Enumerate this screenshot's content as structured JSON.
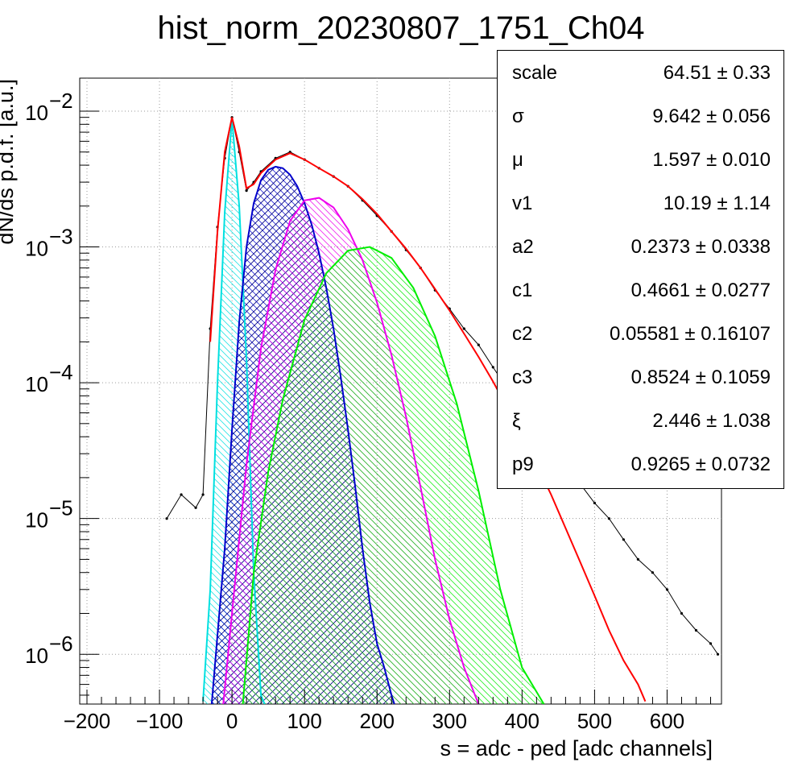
{
  "chart_data": {
    "type": "line",
    "title": "hist_norm_20230807_1751_Ch04",
    "xlabel": "s = adc - ped [adc channels]",
    "ylabel": "dN/ds p.d.f. [a.u.]",
    "xlim": [
      -210,
      675
    ],
    "ylim": [
      4.3e-07,
      0.0175
    ],
    "yscale": "log",
    "grid": true,
    "x_ticks": [
      {
        "v": -200,
        "label": "−200"
      },
      {
        "v": -100,
        "label": "−100"
      },
      {
        "v": 0,
        "label": "0"
      },
      {
        "v": 100,
        "label": "100"
      },
      {
        "v": 200,
        "label": "200"
      },
      {
        "v": 300,
        "label": "300"
      },
      {
        "v": 400,
        "label": "400"
      },
      {
        "v": 500,
        "label": "500"
      },
      {
        "v": 600,
        "label": "600"
      }
    ],
    "y_ticks": [
      {
        "v": 0.01,
        "base": "10",
        "exp": "−2"
      },
      {
        "v": 0.001,
        "base": "10",
        "exp": "−3"
      },
      {
        "v": 0.0001,
        "base": "10",
        "exp": "−4"
      },
      {
        "v": 1e-05,
        "base": "10",
        "exp": "−5"
      },
      {
        "v": 1e-06,
        "base": "10",
        "exp": "−6"
      }
    ],
    "series": [
      {
        "kind": "data",
        "color": "#000000",
        "x": [
          -90,
          -70,
          -50,
          -40,
          -30,
          -20,
          -10,
          0,
          10,
          20,
          30,
          40,
          60,
          80,
          100,
          120,
          140,
          160,
          180,
          200,
          220,
          240,
          260,
          280,
          300,
          320,
          340,
          360,
          380,
          400,
          420,
          440,
          460,
          480,
          500,
          520,
          540,
          560,
          580,
          600,
          620,
          640,
          660,
          670
        ],
        "y": [
          1e-05,
          1.5e-05,
          1.2e-05,
          1.5e-05,
          0.00025,
          0.0014,
          0.0045,
          0.009,
          0.005,
          0.0026,
          0.003,
          0.0036,
          0.0045,
          0.005,
          0.0044,
          0.0038,
          0.0033,
          0.0028,
          0.0022,
          0.0017,
          0.0013,
          0.00095,
          0.0007,
          0.00048,
          0.00035,
          0.00025,
          0.00019,
          0.00013,
          9e-05,
          7e-05,
          5e-05,
          3.5e-05,
          2.5e-05,
          1.8e-05,
          1.3e-05,
          1e-05,
          7e-06,
          5e-06,
          4e-06,
          3e-06,
          2e-06,
          1.5e-06,
          1.2e-06,
          1e-06
        ]
      },
      {
        "kind": "fit",
        "color": "#ff0000",
        "x": [
          -30,
          -20,
          -10,
          0,
          10,
          20,
          30,
          40,
          60,
          80,
          100,
          120,
          140,
          160,
          180,
          200,
          220,
          240,
          260,
          280,
          300,
          320,
          340,
          360,
          380,
          400,
          420,
          440,
          460,
          480,
          500,
          520,
          540,
          560,
          570
        ],
        "y": [
          0.0002,
          0.0013,
          0.005,
          0.009,
          0.0055,
          0.0027,
          0.0029,
          0.0035,
          0.0044,
          0.0049,
          0.0044,
          0.0038,
          0.0033,
          0.0028,
          0.00225,
          0.00175,
          0.0013,
          0.00097,
          0.0007,
          0.00049,
          0.00034,
          0.00023,
          0.000155,
          0.000102,
          6.5e-05,
          4.1e-05,
          2.5e-05,
          1.5e-05,
          8.5e-06,
          4.8e-06,
          2.7e-06,
          1.5e-06,
          9e-07,
          6e-07,
          4.5e-07
        ]
      },
      {
        "kind": "component",
        "color": "#00e0e0",
        "x": [
          -40,
          -30,
          -20,
          -10,
          0,
          10,
          20,
          30,
          40,
          45
        ],
        "y": [
          4.5e-07,
          3e-06,
          0.0001,
          0.0018,
          0.0088,
          0.002,
          0.00015,
          4e-06,
          5e-07,
          4.3e-07
        ]
      },
      {
        "kind": "component",
        "color": "#0000cc",
        "x": [
          -28,
          -10,
          0,
          10,
          20,
          30,
          40,
          50,
          60,
          70,
          80,
          90,
          100,
          110,
          120,
          130,
          140,
          150,
          160,
          170,
          180,
          190,
          200,
          210,
          220,
          224
        ],
        "y": [
          4.3e-07,
          6e-06,
          4.5e-05,
          0.00028,
          0.001,
          0.0021,
          0.0031,
          0.0037,
          0.0039,
          0.0038,
          0.0034,
          0.0028,
          0.0021,
          0.00145,
          0.0009,
          0.0005,
          0.00025,
          0.00011,
          4.5e-05,
          1.7e-05,
          6e-06,
          2.4e-06,
          1.2e-06,
          8e-07,
          5e-07,
          4.3e-07
        ]
      },
      {
        "kind": "component",
        "color": "#ee00ee",
        "x": [
          -12,
          0,
          20,
          40,
          60,
          80,
          100,
          120,
          140,
          160,
          180,
          200,
          220,
          240,
          260,
          280,
          300,
          320,
          340
        ],
        "y": [
          4.3e-07,
          2e-06,
          2.5e-05,
          0.00018,
          0.00068,
          0.00155,
          0.0022,
          0.0023,
          0.00195,
          0.00135,
          0.0008,
          0.00039,
          0.00016,
          5.6e-05,
          1.7e-05,
          5e-06,
          1.8e-06,
          8e-07,
          4.3e-07
        ]
      },
      {
        "kind": "component",
        "color": "#00ee00",
        "x": [
          15,
          30,
          50,
          70,
          100,
          130,
          160,
          190,
          220,
          250,
          280,
          310,
          340,
          370,
          400,
          430
        ],
        "y": [
          4.3e-07,
          4e-06,
          2.2e-05,
          7.5e-05,
          0.00029,
          0.00064,
          0.00094,
          0.001,
          0.00083,
          0.0005,
          0.00022,
          7e-05,
          1.6e-05,
          3e-06,
          8e-07,
          4.3e-07
        ]
      }
    ]
  },
  "stats": [
    {
      "name": "scale",
      "value": "64.51 ± 0.33"
    },
    {
      "name": "σ",
      "value": "9.642 ± 0.056"
    },
    {
      "name": "μ",
      "value": "1.597 ± 0.010"
    },
    {
      "name": "v1",
      "value": "10.19 ± 1.14"
    },
    {
      "name": "a2",
      "value": "0.2373 ± 0.0338"
    },
    {
      "name": "c1",
      "value": "0.4661 ± 0.0277"
    },
    {
      "name": "c2",
      "value": "0.05581 ± 0.16107"
    },
    {
      "name": "c3",
      "value": "0.8524 ± 0.1059"
    },
    {
      "name": "ξ",
      "value": "2.446 ± 1.038"
    },
    {
      "name": "p9",
      "value": "0.9265 ± 0.0732"
    }
  ]
}
